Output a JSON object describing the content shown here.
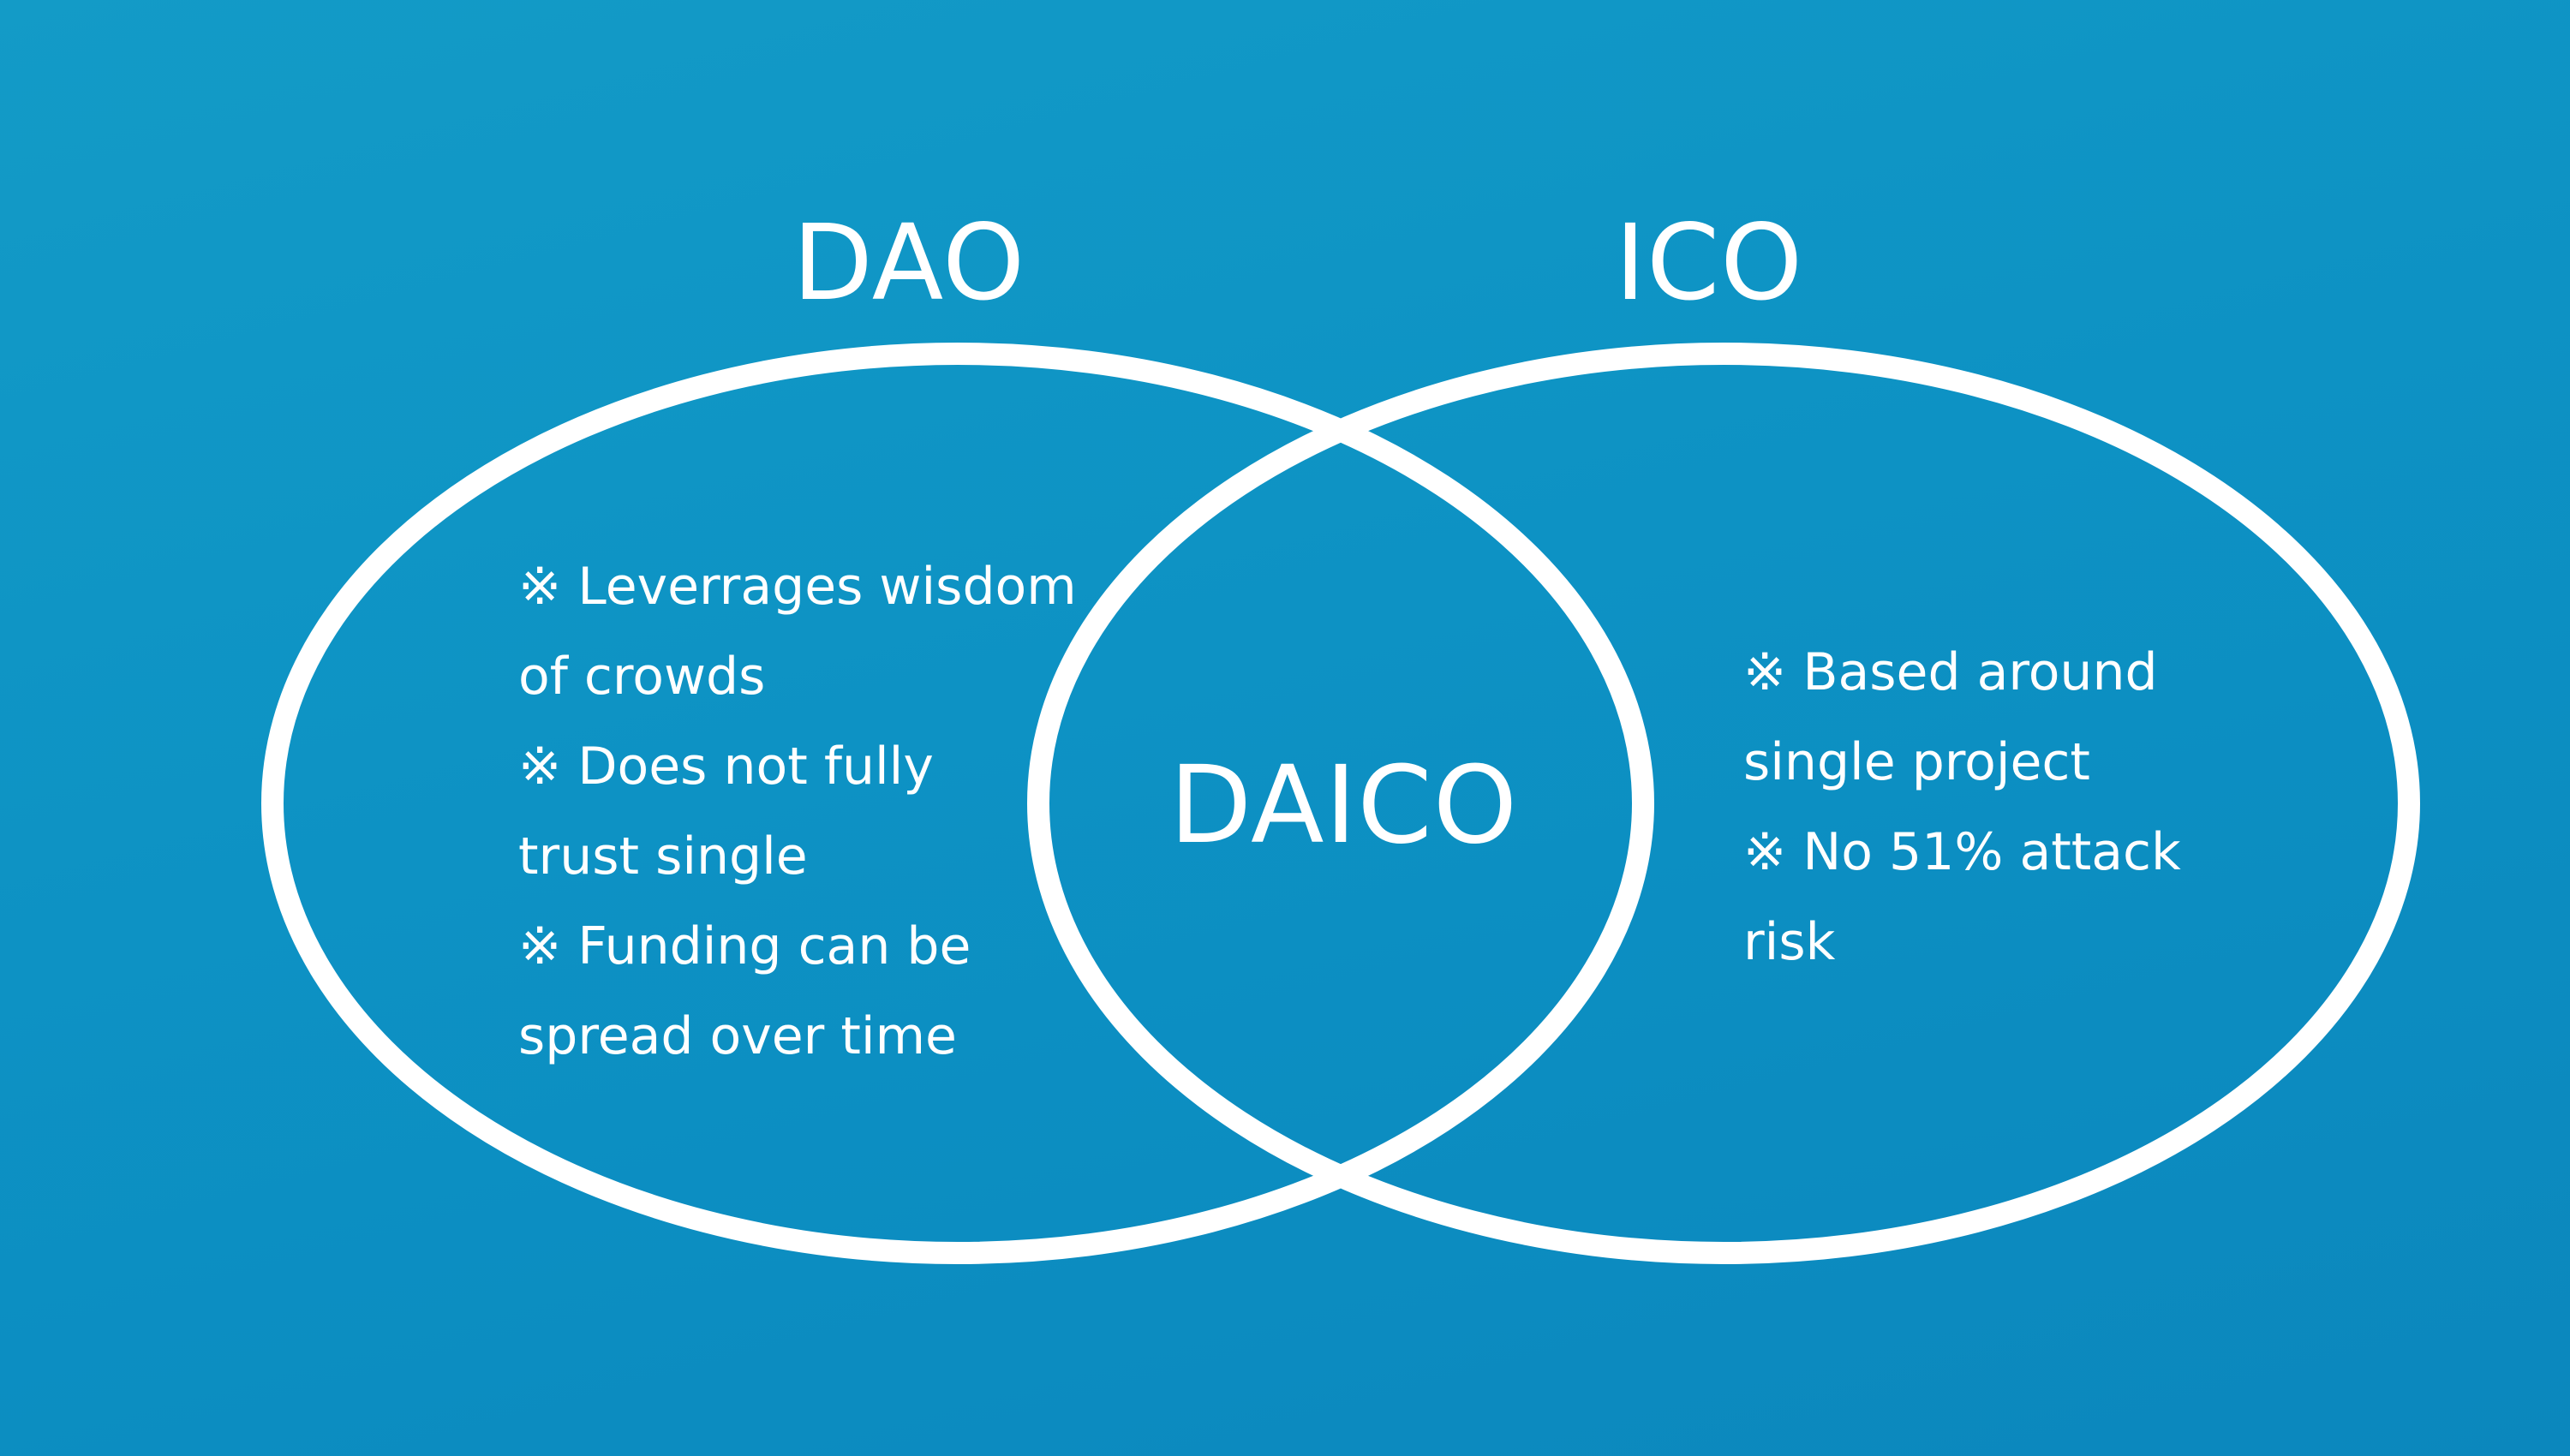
{
  "diagram": {
    "background_color": "#0f93c4",
    "stroke_color": "#ffffff",
    "sets": [
      {
        "title": "DAO",
        "lines": [
          "※ Leverrages wisdom",
          "of crowds",
          "※ Does not fully",
          "trust single",
          "※ Funding can be",
          "spread over time"
        ]
      },
      {
        "title": "ICO",
        "lines": [
          "※ Based around",
          "single project",
          "※ No 51% attack",
          "risk"
        ]
      }
    ],
    "intersection": {
      "title": "DAICO"
    }
  }
}
